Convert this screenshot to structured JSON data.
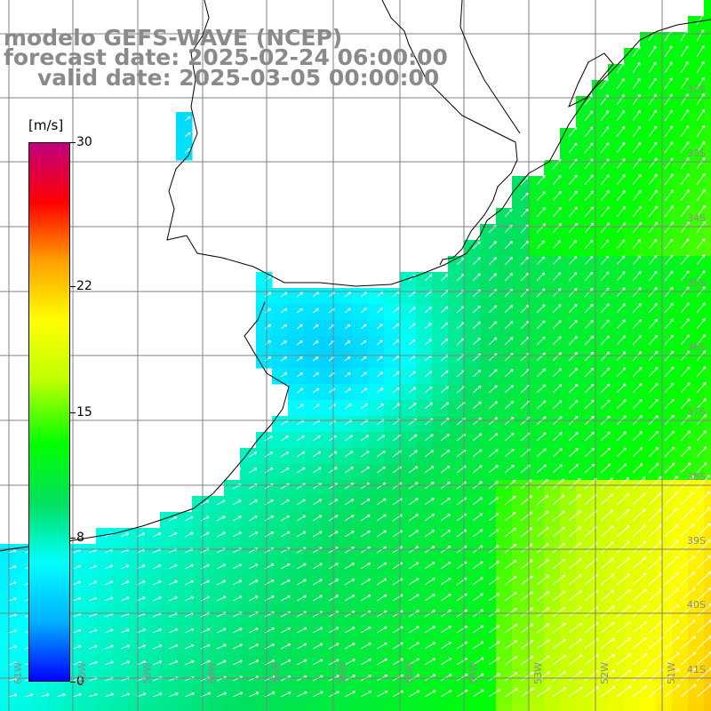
{
  "title": {
    "line1": "modelo GEFS-WAVE (NCEP)",
    "line2": "forecast date: 2025-02-24 06:00:00",
    "line3": "valid date: 2025-03-05 00:00:00"
  },
  "colorbar": {
    "unit": "[m/s]",
    "ticks": [
      "30",
      "22",
      "15",
      "8",
      "0"
    ],
    "tick_values": [
      30,
      22,
      15,
      8,
      0
    ],
    "min": 0,
    "max": 30,
    "colors": [
      "#0000ff",
      "#00b0ff",
      "#00ffff",
      "#00e060",
      "#00ff00",
      "#c0ff00",
      "#ffff00",
      "#ffa000",
      "#ff0000",
      "#c00080"
    ]
  },
  "map": {
    "lat_labels": [
      "32S",
      "33S",
      "34S",
      "35S",
      "36S",
      "37S",
      "38S",
      "39S",
      "40S",
      "41S"
    ],
    "lon_labels": [
      "61W",
      "60W",
      "59W",
      "58W",
      "57W",
      "56W",
      "55W",
      "54W",
      "53W",
      "52W",
      "51W"
    ],
    "lat_range": [
      -41.5,
      -31
    ],
    "lon_range": [
      -61.2,
      -50.5
    ],
    "land_color": "#ffffff",
    "grid_color": "#808080",
    "coast_color": "#000000",
    "arrow_color": "#ffffff"
  }
}
